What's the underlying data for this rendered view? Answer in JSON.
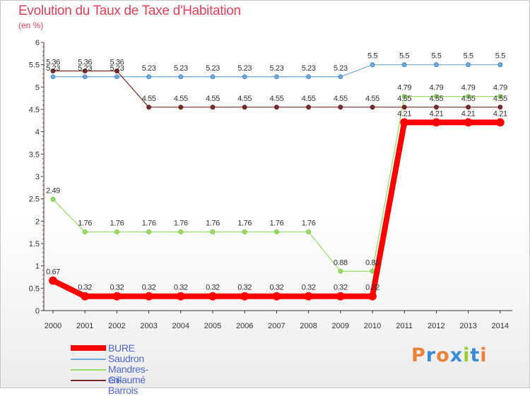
{
  "header": {
    "title": "Evolution du Taux de Taxe d'Habitation",
    "subtitle": "(en %)"
  },
  "chart_data": {
    "type": "line",
    "title": "Evolution du Taux de Taxe d'Habitation",
    "ylabel": "(en %)",
    "xlabel": "",
    "x": [
      "2000",
      "2001",
      "2002",
      "2003",
      "2004",
      "2005",
      "2006",
      "2007",
      "2008",
      "2009",
      "2010",
      "2011",
      "2012",
      "2013",
      "2014"
    ],
    "ylim": [
      0,
      6
    ],
    "yticks": [
      "0",
      "0.5",
      "1",
      "1.5",
      "2",
      "2.5",
      "3",
      "3.5",
      "4",
      "4.5",
      "5",
      "5.5",
      "6"
    ],
    "series": [
      {
        "name": "BURE",
        "color": "#ff0000",
        "values": [
          0.67,
          0.32,
          0.32,
          0.32,
          0.32,
          0.32,
          0.32,
          0.32,
          0.32,
          0.32,
          0.32,
          4.21,
          4.21,
          4.21,
          4.21
        ],
        "labels": [
          "0.67",
          "0.32",
          "0.32",
          "0.32",
          "0.32",
          "0.32",
          "0.32",
          "0.32",
          "0.32",
          "0.32",
          "0.32",
          "4.21",
          "4.21",
          "4.21",
          "4.21"
        ]
      },
      {
        "name": "Saudron",
        "color": "#6fa8dc",
        "values": [
          5.23,
          5.23,
          5.23,
          5.23,
          5.23,
          5.23,
          5.23,
          5.23,
          5.23,
          5.23,
          5.5,
          5.5,
          5.5,
          5.5,
          5.5
        ],
        "labels": [
          "5.23",
          "5.23",
          "5.23",
          "5.23",
          "5.23",
          "5.23",
          "5.23",
          "5.23",
          "5.23",
          "5.23",
          "5.5",
          "5.5",
          "5.5",
          "5.5",
          "5.5"
        ]
      },
      {
        "name": "Mandres-en-Barrois",
        "color": "#99dd66",
        "values": [
          2.49,
          1.76,
          1.76,
          1.76,
          1.76,
          1.76,
          1.76,
          1.76,
          1.76,
          0.88,
          0.88,
          4.79,
          4.79,
          4.79,
          4.79
        ],
        "labels": [
          "2.49",
          "1.76",
          "1.76",
          "1.76",
          "1.76",
          "1.76",
          "1.76",
          "1.76",
          "1.76",
          "0.88",
          "0.88",
          "4.79",
          "4.79",
          "4.79",
          "4.79"
        ]
      },
      {
        "name": "Gillaumé",
        "color": "#7a2a2a",
        "values": [
          5.36,
          5.36,
          5.36,
          4.55,
          4.55,
          4.55,
          4.55,
          4.55,
          4.55,
          4.55,
          4.55,
          4.55,
          4.55,
          4.55,
          4.55
        ],
        "labels": [
          "5.36",
          "5.36",
          "5.36",
          "4.55",
          "4.55",
          "4.55",
          "4.55",
          "4.55",
          "4.55",
          "4.55",
          "4.55",
          "4.55",
          "4.55",
          "4.55",
          "4.55"
        ]
      }
    ],
    "legend": "bottom-left"
  },
  "branding": {
    "letters": [
      "P",
      "r",
      "o",
      "x",
      "i",
      "t",
      "i"
    ]
  }
}
